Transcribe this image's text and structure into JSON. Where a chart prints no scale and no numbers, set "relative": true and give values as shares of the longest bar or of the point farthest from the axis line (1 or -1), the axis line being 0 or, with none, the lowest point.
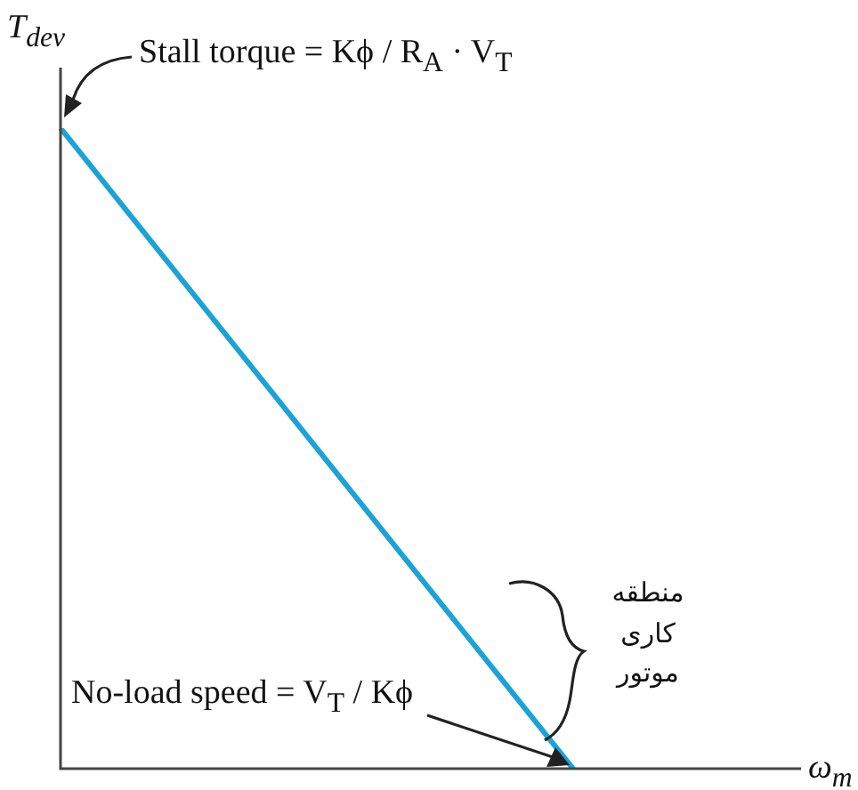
{
  "chart_data": {
    "type": "line",
    "relative": true,
    "xlabel": "ω$_{m}$",
    "ylabel": "T$_{dev}$",
    "categories": [
      null,
      null
    ],
    "series": [
      {
        "color": "#1ba3d6",
        "values": [
          1,
          0
        ]
      }
    ],
    "marker": "none",
    "legend": false,
    "annotations": [
      "Stall torque = Kϕ / R$_{A}$ · V$_{T}$",
      "No-load speed = V$_{T}$ / Kϕ",
      "منطقه کاری موتور"
    ]
  }
}
